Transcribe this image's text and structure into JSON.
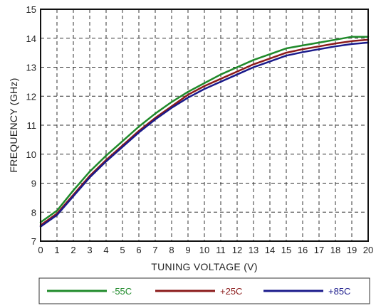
{
  "chart_data": {
    "type": "line",
    "title": "",
    "xlabel": "TUNING VOLTAGE (V)",
    "ylabel": "FREQUENCY (GHz)",
    "xlim": [
      0,
      20
    ],
    "ylim": [
      7,
      15
    ],
    "x_ticks": [
      "0",
      "1",
      "2",
      "3",
      "4",
      "5",
      "6",
      "7",
      "8",
      "9",
      "10",
      "11",
      "12",
      "13",
      "14",
      "15",
      "16",
      "17",
      "18",
      "19",
      "20"
    ],
    "y_ticks": [
      "7",
      "8",
      "9",
      "10",
      "11",
      "12",
      "13",
      "14",
      "15"
    ],
    "grid": true,
    "grid_style": "dashed",
    "legend_position": "bottom",
    "x": [
      0,
      1,
      2,
      3,
      4,
      5,
      6,
      7,
      8,
      9,
      10,
      11,
      12,
      13,
      14,
      15,
      16,
      17,
      18,
      19,
      20
    ],
    "series": [
      {
        "name": "-55C",
        "color": "#1f8a2a",
        "values": [
          7.65,
          8.05,
          8.75,
          9.4,
          9.95,
          10.45,
          10.95,
          11.4,
          11.8,
          12.15,
          12.45,
          12.75,
          13.0,
          13.25,
          13.45,
          13.65,
          13.75,
          13.85,
          13.95,
          14.05,
          14.05
        ]
      },
      {
        "name": "+25C",
        "color": "#8b1a1a",
        "values": [
          7.55,
          7.95,
          8.6,
          9.25,
          9.8,
          10.3,
          10.8,
          11.25,
          11.65,
          12.05,
          12.35,
          12.6,
          12.85,
          13.1,
          13.3,
          13.5,
          13.62,
          13.72,
          13.82,
          13.9,
          13.95
        ]
      },
      {
        "name": "+85C",
        "color": "#1a1a8b",
        "values": [
          7.5,
          7.9,
          8.55,
          9.2,
          9.75,
          10.25,
          10.75,
          11.2,
          11.6,
          11.95,
          12.25,
          12.5,
          12.75,
          13.0,
          13.2,
          13.4,
          13.52,
          13.62,
          13.72,
          13.8,
          13.85
        ]
      }
    ]
  }
}
